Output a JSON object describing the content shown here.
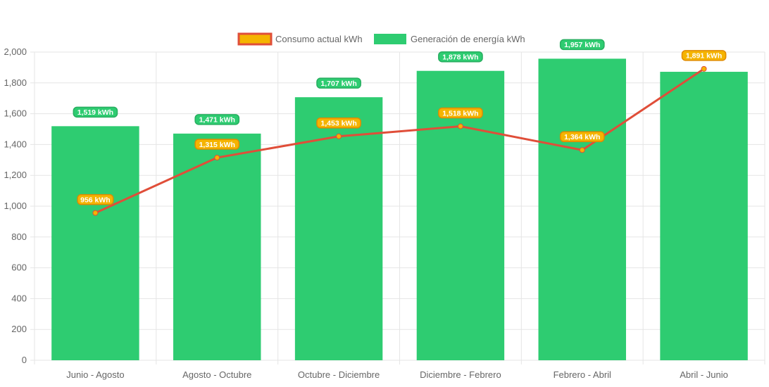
{
  "chart_data": {
    "type": "bar",
    "title": "",
    "xlabel": "",
    "ylabel": "",
    "ylim": [
      0,
      2000
    ],
    "yticks": [
      0,
      200,
      400,
      600,
      800,
      1000,
      1200,
      1400,
      1600,
      1800,
      2000
    ],
    "ytick_labels": [
      "0",
      "200",
      "400",
      "600",
      "800",
      "1,000",
      "1,200",
      "1,400",
      "1,600",
      "1,800",
      "2,000"
    ],
    "grid": true,
    "legend_position": "top-center",
    "categories": [
      "Junio - Agosto",
      "Agosto - Octubre",
      "Octubre - Diciembre",
      "Diciembre - Febrero",
      "Febrero - Abril",
      "Abril - Junio"
    ],
    "series": [
      {
        "name": "Consumo actual kWh",
        "type": "line",
        "color": "#e04e39",
        "fill": "#f5b400",
        "values": [
          956,
          1315,
          1453,
          1518,
          1364,
          1891
        ],
        "labels": [
          "956 kWh",
          "1,315 kWh",
          "1,453 kWh",
          "1,518 kWh",
          "1,364 kWh",
          "1,891 kWh"
        ]
      },
      {
        "name": "Generación de energía kWh",
        "type": "bar",
        "color": "#2ecc71",
        "values": [
          1519,
          1471,
          1707,
          1878,
          1957,
          1872
        ],
        "labels": [
          "1,519 kWh",
          "1,471 kWh",
          "1,707 kWh",
          "1,878 kWh",
          "1,957 kWh",
          ""
        ]
      }
    ]
  }
}
